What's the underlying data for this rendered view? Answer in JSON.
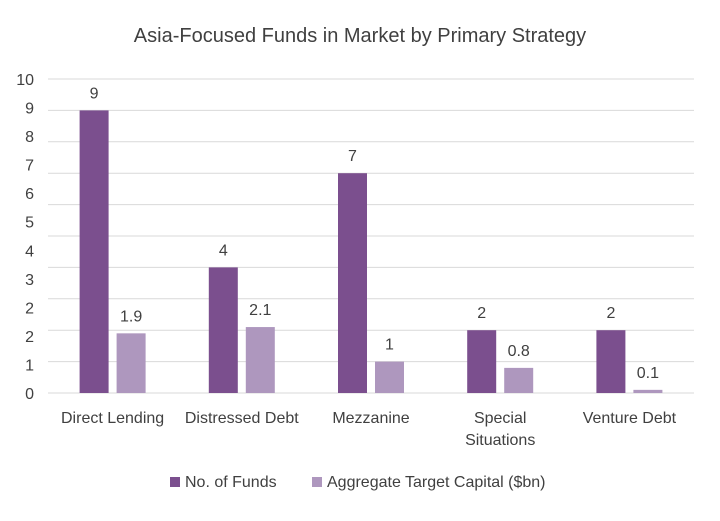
{
  "chart_data": {
    "type": "bar",
    "title": "Asia-Focused Funds in Market by Primary Strategy",
    "categories": [
      [
        "Direct Lending"
      ],
      [
        "Distressed Debt"
      ],
      [
        "Mezzanine"
      ],
      [
        "Special",
        "Situations"
      ],
      [
        "Venture Debt"
      ]
    ],
    "series": [
      {
        "name": "No. of Funds",
        "color": "#7b4f8e",
        "values": [
          9,
          4,
          7,
          2,
          2
        ],
        "labels": [
          "9",
          "4",
          "7",
          "2",
          "2"
        ]
      },
      {
        "name": "Aggregate Target Capital ($bn)",
        "color": "#ae97be",
        "values": [
          1.9,
          2.1,
          1,
          0.8,
          0.1
        ],
        "labels": [
          "1.9",
          "2.1",
          "1",
          "0.8",
          "0.1"
        ]
      }
    ],
    "yticks": [
      "0",
      "1",
      "2",
      "2",
      "3",
      "4",
      "5",
      "6",
      "7",
      "8",
      "9",
      "10"
    ],
    "ylim": [
      0,
      10
    ],
    "grid": true,
    "legend_position": "bottom"
  }
}
